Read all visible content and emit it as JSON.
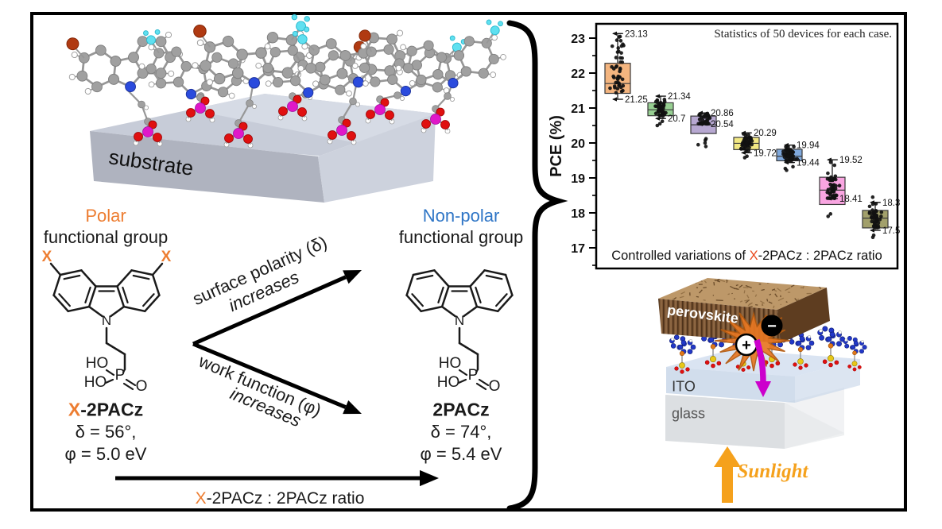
{
  "left_panel": {
    "substrate_label": "substrate",
    "polar": {
      "title": "Polar",
      "subtitle": "functional group"
    },
    "nonpolar": {
      "title": "Non-polar",
      "subtitle": "functional group"
    },
    "molecule_left": {
      "x1": "X",
      "x2": "X",
      "name_x": "X",
      "name_rest": "-2PACz",
      "delta": "δ = 56°,",
      "phi": "φ = 5.0 eV",
      "ho_top": "HO",
      "ho_bottom": "HO",
      "p": "P",
      "o": "O",
      "n": "N"
    },
    "molecule_right": {
      "name": "2PACz",
      "delta": "δ = 74°,",
      "phi": "φ = 5.4 eV",
      "ho_top": "HO",
      "ho_bottom": "HO",
      "p": "P",
      "o": "O",
      "n": "N"
    },
    "arrow_top": {
      "line1": "surface polarity (δ)",
      "line2": "increases"
    },
    "arrow_bottom": {
      "line1": "work function (φ)",
      "line2": "increases"
    },
    "bottom_arrow": {
      "x": "X",
      "rest": "-2PACz : 2PACz ratio"
    }
  },
  "device": {
    "perovskite_label": "perovskite",
    "ito_label": "ITO",
    "glass_label": "glass",
    "sunlight_label": "Sunlight",
    "plus": "+",
    "minus": "−"
  },
  "chart_data": {
    "type": "box",
    "title": "",
    "ylabel": "PCE (%)",
    "yticks": [
      17,
      18,
      19,
      20,
      21,
      22,
      23
    ],
    "ylim": [
      16.4,
      23.4
    ],
    "grid": false,
    "note_top": "Statistics of 50 devices for each case.",
    "note_bottom": {
      "prefix": "Controlled variations of ",
      "x": "X",
      "rest": "-2PACz : 2PACz ratio"
    },
    "x_meaning": "Controlled variations of X-2PACz : 2PACz ratio (7 cases, 50 devices each)",
    "groups": [
      {
        "whisker_high": 23.13,
        "q3": 22.28,
        "median": 21.7,
        "q1": 21.42,
        "whisker_low": 21.25,
        "label_high": "23.13",
        "label_low": "21.25",
        "color": "#F4B57F",
        "outliers_low": [],
        "outliers_high": []
      },
      {
        "whisker_high": 21.34,
        "q3": 21.15,
        "median": 20.95,
        "q1": 20.78,
        "whisker_low": 20.7,
        "label_high": "21.34",
        "label_low": "20.7",
        "color": "#97CF92",
        "outliers_low": [
          20.62,
          20.55,
          20.5
        ],
        "outliers_high": []
      },
      {
        "whisker_high": 20.86,
        "q3": 20.77,
        "median": 20.52,
        "q1": 20.27,
        "whisker_low": 20.54,
        "label_high": "20.86",
        "label_low": "20.54",
        "color": "#B7A8D1",
        "outliers_low": [
          20.12,
          20.08,
          20.0,
          19.95,
          19.9
        ],
        "outliers_high": []
      },
      {
        "whisker_high": 20.29,
        "q3": 20.16,
        "median": 19.99,
        "q1": 19.81,
        "whisker_low": 19.72,
        "label_high": "20.29",
        "label_low": "19.72",
        "color": "#F2E883",
        "outliers_low": [
          19.62,
          19.58
        ],
        "outliers_high": []
      },
      {
        "whisker_high": 19.94,
        "q3": 19.82,
        "median": 19.62,
        "q1": 19.49,
        "whisker_low": 19.44,
        "label_high": "19.94",
        "label_low": "19.44",
        "color": "#7FA8DC",
        "outliers_low": [
          19.32,
          19.27,
          19.22
        ],
        "outliers_high": []
      },
      {
        "whisker_high": 19.52,
        "q3": 19.02,
        "median": 18.65,
        "q1": 18.24,
        "whisker_low": 18.41,
        "label_high": "19.52",
        "label_low": "18.41",
        "color": "#F9A5E1",
        "outliers_low": [
          17.97,
          17.9
        ],
        "outliers_high": []
      },
      {
        "whisker_high": 18.3,
        "q3": 18.07,
        "median": 17.85,
        "q1": 17.57,
        "whisker_low": 17.5,
        "label_high": "18.3",
        "label_low": "17.5",
        "color": "#A2A06B",
        "outliers_low": [
          17.36,
          17.3
        ],
        "outliers_high": [
          18.45
        ]
      }
    ]
  },
  "colors": {
    "accent_orange": "#ED7D31",
    "accent_blue": "#2E75C6",
    "x_red": "#E8491D",
    "sunlight_orange": "#F5A11C",
    "magenta_arrow": "#CC00CC",
    "atom_carbon": "#A0A0A0",
    "atom_hydrogen": "#FFFFFF",
    "atom_nitrogen": "#2B4BDD",
    "atom_amine": "#5FE0F0",
    "atom_bromine": "#B03A12",
    "atom_phosphorus": "#E018C8",
    "atom_oxygen": "#E01010"
  }
}
